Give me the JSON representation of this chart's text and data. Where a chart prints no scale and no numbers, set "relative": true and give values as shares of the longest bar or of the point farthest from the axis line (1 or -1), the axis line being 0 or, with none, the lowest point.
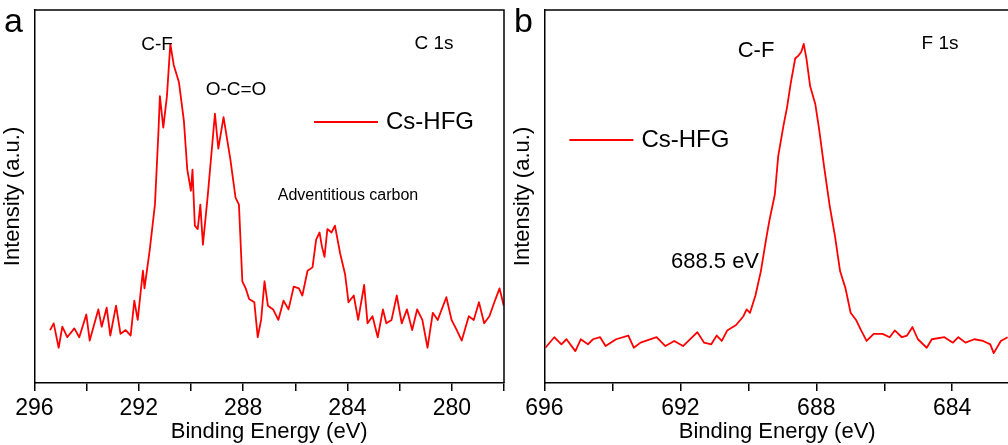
{
  "chart_data": [
    {
      "type": "line",
      "title": "a",
      "subtitle": "C 1s",
      "xlabel": "Binding Energy (eV)",
      "ylabel": "Intensity (a.u.)",
      "relative": true,
      "legend": "top right",
      "grid": false,
      "marker": "none",
      "line_style": "solid",
      "xlim": [
        296,
        278
      ],
      "xticks": [
        296,
        {
          "value": 294,
          "label": null
        },
        292,
        {
          "value": 290,
          "label": null
        },
        288,
        {
          "value": 286,
          "label": null
        },
        284,
        {
          "value": 282,
          "label": null
        },
        280,
        {
          "value": 278,
          "label": null
        }
      ],
      "annotations": [
        "C-F",
        "O-C=O",
        "Adventitious carbon"
      ],
      "series": [
        {
          "name": "Cs-HFG",
          "color": "#ff0000",
          "x": [
            295.4,
            295.26,
            295.07,
            294.93,
            294.74,
            294.47,
            294.28,
            294.01,
            293.88,
            293.55,
            293.42,
            293.23,
            293.09,
            292.87,
            292.7,
            292.5,
            292.31,
            292.17,
            292.04,
            291.84,
            291.78,
            291.58,
            291.38,
            291.25,
            291.19,
            291.06,
            290.92,
            290.79,
            290.66,
            290.46,
            290.27,
            290.14,
            290.0,
            289.94,
            289.85,
            289.74,
            289.64,
            289.54,
            289.35,
            289.08,
            288.95,
            288.75,
            288.49,
            288.29,
            288.16,
            288.03,
            287.9,
            287.77,
            287.57,
            287.44,
            287.31,
            287.18,
            287.05,
            286.85,
            286.65,
            286.45,
            286.26,
            286.06,
            285.86,
            285.73,
            285.53,
            285.34,
            285.2,
            285.07,
            284.98,
            284.88,
            284.77,
            284.61,
            284.48,
            284.28,
            284.09,
            283.96,
            283.76,
            283.59,
            283.36,
            283.23,
            283.04,
            282.84,
            282.64,
            282.51,
            282.31,
            282.11,
            281.92,
            281.72,
            281.52,
            281.33,
            281.13,
            280.93,
            280.73,
            280.54,
            280.21,
            280.01,
            279.81,
            279.62,
            279.35,
            279.16,
            278.96,
            278.76,
            278.56,
            278.37,
            278.17,
            278.01
          ],
          "values": [
            0.156,
            0.176,
            0.104,
            0.166,
            0.135,
            0.161,
            0.135,
            0.202,
            0.125,
            0.217,
            0.166,
            0.222,
            0.14,
            0.228,
            0.145,
            0.156,
            0.14,
            0.243,
            0.186,
            0.331,
            0.279,
            0.392,
            0.526,
            0.732,
            0.846,
            0.753,
            0.846,
            1.0,
            0.938,
            0.887,
            0.773,
            0.629,
            0.567,
            0.629,
            0.464,
            0.454,
            0.526,
            0.408,
            0.557,
            0.794,
            0.691,
            0.784,
            0.66,
            0.547,
            0.526,
            0.3,
            0.279,
            0.248,
            0.238,
            0.135,
            0.186,
            0.3,
            0.228,
            0.217,
            0.186,
            0.243,
            0.217,
            0.284,
            0.279,
            0.258,
            0.331,
            0.341,
            0.423,
            0.444,
            0.403,
            0.372,
            0.454,
            0.444,
            0.464,
            0.382,
            0.32,
            0.238,
            0.258,
            0.186,
            0.289,
            0.176,
            0.197,
            0.135,
            0.217,
            0.176,
            0.186,
            0.258,
            0.176,
            0.217,
            0.156,
            0.217,
            0.186,
            0.104,
            0.207,
            0.186,
            0.253,
            0.186,
            0.156,
            0.125,
            0.197,
            0.186,
            0.238,
            0.176,
            0.197,
            0.238,
            0.279,
            0.228
          ]
        }
      ]
    },
    {
      "type": "line",
      "title": "b",
      "subtitle": "F 1s",
      "xlabel": "Binding Energy (eV)",
      "ylabel": "Intensity (a.u.)",
      "relative": true,
      "legend": "left",
      "grid": false,
      "marker": "none",
      "line_style": "solid",
      "xlim": [
        696,
        682.3
      ],
      "xticks": [
        696,
        {
          "value": 694,
          "label": null
        },
        692,
        {
          "value": 690,
          "label": null
        },
        688,
        {
          "value": 686,
          "label": null
        },
        684
      ],
      "annotations": [
        "C-F",
        "688.5 eV"
      ],
      "series": [
        {
          "name": "Cs-HFG",
          "color": "#ff0000",
          "x": [
            695.97,
            695.71,
            695.5,
            695.35,
            695.09,
            694.93,
            694.72,
            694.57,
            694.36,
            694.2,
            693.89,
            693.53,
            693.37,
            693.17,
            692.7,
            692.44,
            692.18,
            691.92,
            691.5,
            691.3,
            691.09,
            690.93,
            690.78,
            690.62,
            690.36,
            690.15,
            690.05,
            689.95,
            689.79,
            689.63,
            689.48,
            689.38,
            689.22,
            689.12,
            688.96,
            688.86,
            688.75,
            688.62,
            688.51,
            688.44,
            688.37,
            688.29,
            688.18,
            688.03,
            687.92,
            687.77,
            687.61,
            687.45,
            687.3,
            687.14,
            686.99,
            686.83,
            686.68,
            686.52,
            686.31,
            686.05,
            685.84,
            685.69,
            685.48,
            685.33,
            685.17,
            685.01,
            684.75,
            684.6,
            684.23,
            683.98,
            683.82,
            683.61,
            683.35,
            683.09,
            682.88,
            682.78,
            682.57,
            682.37
          ],
          "values": [
            0.104,
            0.135,
            0.114,
            0.129,
            0.094,
            0.129,
            0.114,
            0.129,
            0.135,
            0.109,
            0.129,
            0.14,
            0.104,
            0.119,
            0.135,
            0.109,
            0.124,
            0.109,
            0.15,
            0.119,
            0.114,
            0.14,
            0.124,
            0.155,
            0.171,
            0.196,
            0.217,
            0.207,
            0.258,
            0.33,
            0.422,
            0.479,
            0.556,
            0.669,
            0.762,
            0.813,
            0.885,
            0.957,
            0.967,
            0.977,
            1.0,
            0.957,
            0.875,
            0.823,
            0.751,
            0.638,
            0.525,
            0.433,
            0.33,
            0.279,
            0.207,
            0.186,
            0.155,
            0.124,
            0.145,
            0.145,
            0.135,
            0.155,
            0.135,
            0.14,
            0.165,
            0.129,
            0.104,
            0.129,
            0.135,
            0.119,
            0.135,
            0.119,
            0.129,
            0.124,
            0.114,
            0.088,
            0.124,
            0.135
          ]
        }
      ]
    }
  ]
}
